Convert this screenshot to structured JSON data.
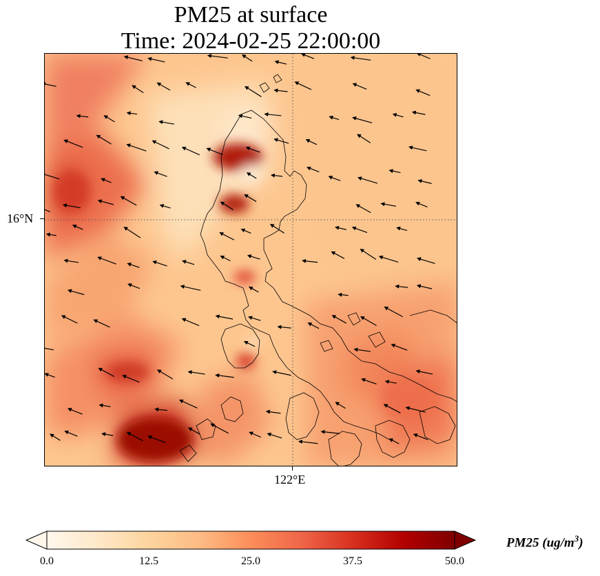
{
  "title": {
    "line1": "PM25 at surface",
    "line2": "Time: 2024-02-25 22:00:00"
  },
  "axes": {
    "lat_label": "16°N",
    "lon_label": "122°E",
    "gridlines": "dotted"
  },
  "colorbar": {
    "label": "PM25 (ug/m",
    "label_exponent": "3",
    "label_close": ")",
    "ticks": [
      "0.0",
      "12.5",
      "25.0",
      "37.5",
      "50.0"
    ],
    "min": 0,
    "max": 50,
    "extend": "both",
    "colormap": "OrRd",
    "colors": [
      "#fff7ec",
      "#fee8c8",
      "#fdd49e",
      "#fdbb84",
      "#fc8d59",
      "#ef6548",
      "#d7301f",
      "#b30000",
      "#7f0000"
    ]
  },
  "map": {
    "background_level_ugm3": 17,
    "wind_vectors": "black arrows, predominantly easterly (pointing west-southwest)",
    "hotspots": [
      {
        "area": "northwest Luzon coast",
        "value": 45
      },
      {
        "area": "west Luzon coast, around 16N",
        "value": 48
      },
      {
        "area": "southwest open sea",
        "value": 46
      },
      {
        "area": "northwest open sea",
        "value": 36
      },
      {
        "area": "southeast Luzon",
        "value": 33
      },
      {
        "area": "Mindoro coast",
        "value": 40
      }
    ]
  }
}
